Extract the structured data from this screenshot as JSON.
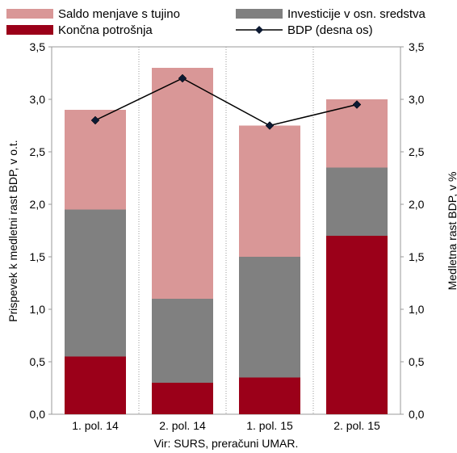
{
  "chart_data": {
    "type": "bar",
    "stacked": true,
    "categories": [
      "1. pol. 14",
      "2. pol. 14",
      "1. pol. 15",
      "2. pol. 15"
    ],
    "series": [
      {
        "name": "Končna potrošnja",
        "values": [
          0.55,
          0.3,
          0.35,
          1.7
        ],
        "color": "#9b0019"
      },
      {
        "name": "Investicije v osn. sredstva",
        "values": [
          1.4,
          0.8,
          1.15,
          0.65
        ],
        "color": "#808080"
      },
      {
        "name": "Saldo menjave s tujino",
        "values": [
          0.95,
          2.2,
          1.25,
          0.65
        ],
        "color": "#d99797"
      }
    ],
    "line_series": {
      "name": "BDP (desna os)",
      "values": [
        2.8,
        3.2,
        2.75,
        2.95
      ],
      "color": "#000000",
      "marker_color": "#0d1a33"
    },
    "ylabel": "Prispevek k medletni rast BDP, v o.t.",
    "ylabel_right": "Medletna rast BDP, v %",
    "ylim": [
      0,
      3.5
    ],
    "y2lim": [
      0,
      3.5
    ],
    "yticks": [
      "0,0",
      "0,5",
      "1,0",
      "1,5",
      "2,0",
      "2,5",
      "3,0",
      "3,5"
    ],
    "y2ticks": [
      "0,0",
      "0,5",
      "1,0",
      "1,5",
      "2,0",
      "2,5",
      "3,0",
      "3,5"
    ],
    "legend_position": "top",
    "grid": "vertical dotted",
    "source": "Vir: SURS, preračuni UMAR."
  }
}
